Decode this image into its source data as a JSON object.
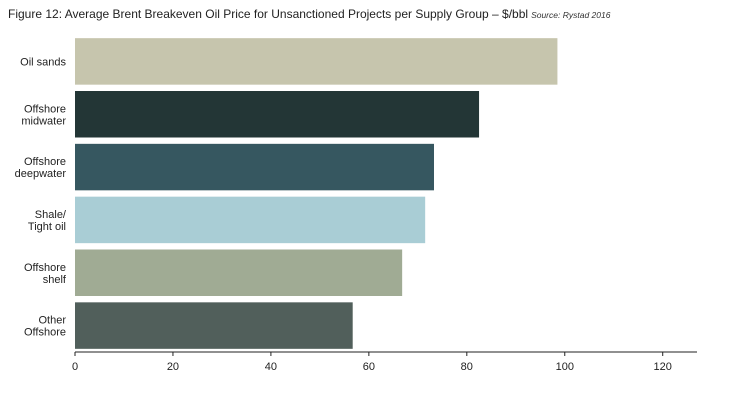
{
  "chart_data": {
    "type": "bar",
    "orientation": "horizontal",
    "title": "Figure 12: Average Brent Breakeven Oil Price for Unsanctioned Projects per Supply Group – $/bbl",
    "source": "Source: Rystad 2016",
    "categories": [
      [
        "Oil sands"
      ],
      [
        "Offshore",
        "midwater"
      ],
      [
        "Offshore",
        "deepwater"
      ],
      [
        "Shale/",
        "Tight oil"
      ],
      [
        "Offshore",
        "shelf"
      ],
      [
        "Other",
        "Offshore"
      ]
    ],
    "values": [
      98.5,
      82.5,
      73.3,
      71.5,
      66.8,
      56.7
    ],
    "colors": [
      "#c6c5ad",
      "#233636",
      "#365760",
      "#a9cdd5",
      "#a0ab94",
      "#515f5b"
    ],
    "xlim": [
      0,
      127
    ],
    "xticks": [
      0,
      20,
      40,
      60,
      80,
      100,
      120
    ],
    "xlabel": "",
    "ylabel": "",
    "grid": false
  }
}
